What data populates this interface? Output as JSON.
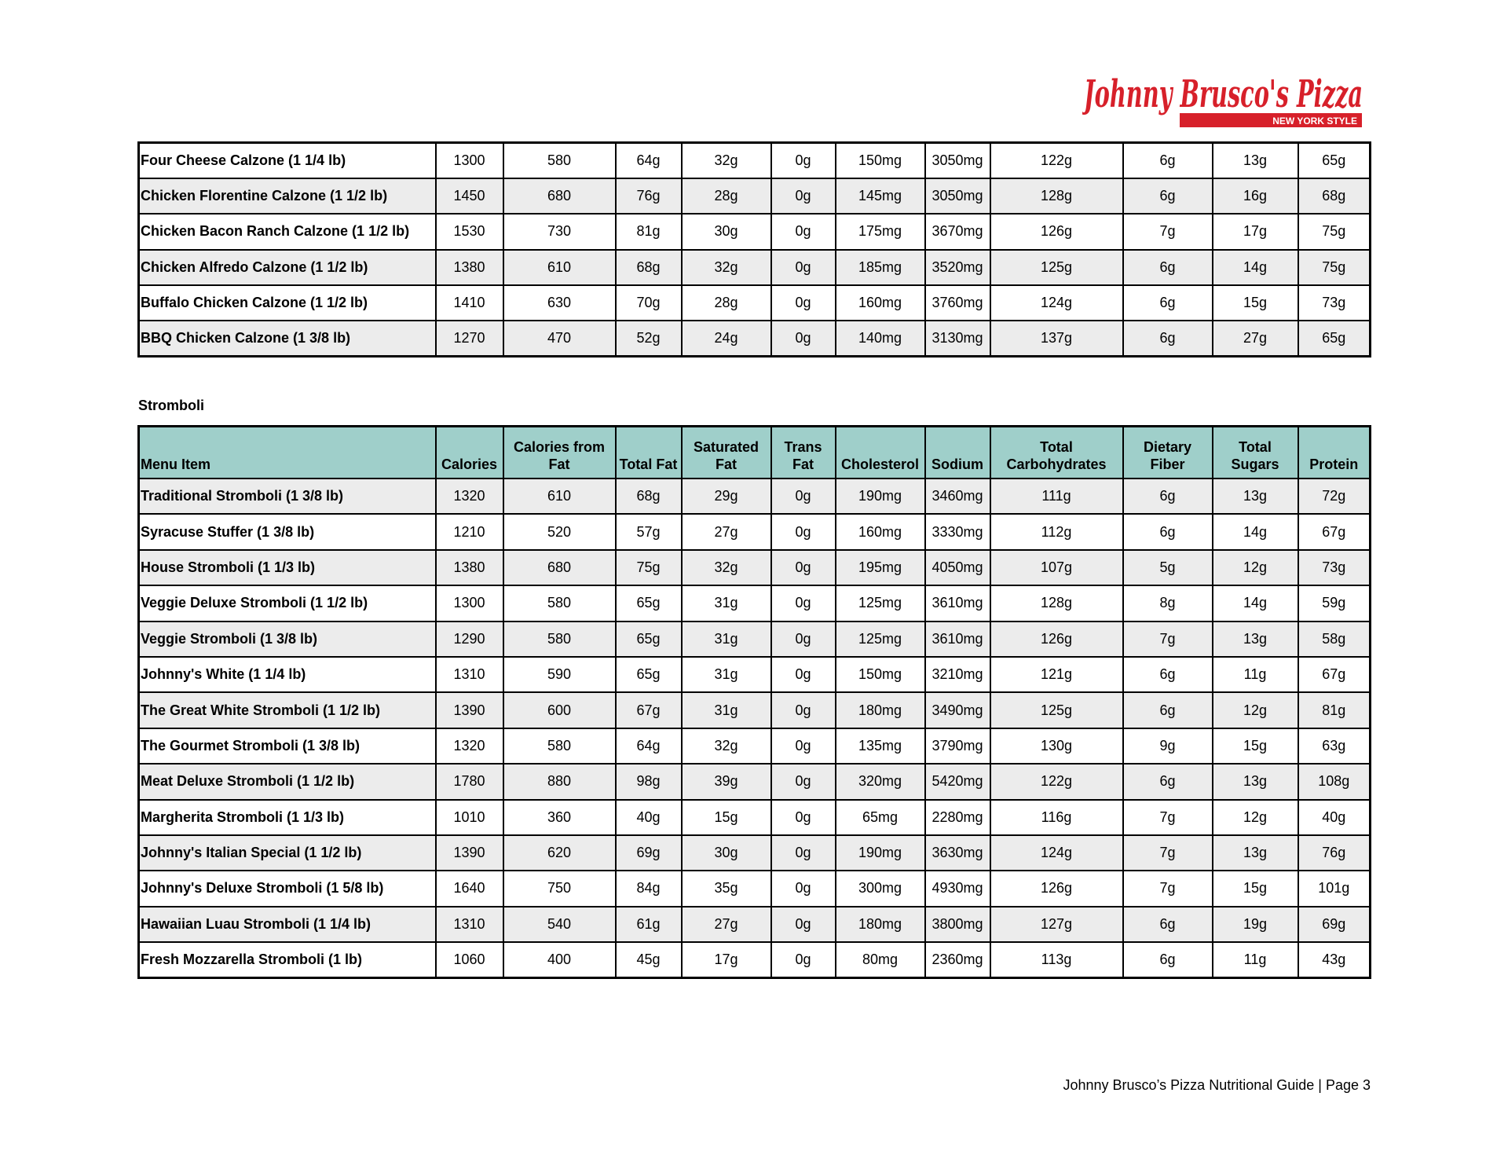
{
  "logo": {
    "name": "Johnny Brusco's Pizza",
    "tagline": "NEW YORK STYLE",
    "color": "#d7202a"
  },
  "columns": [
    "Menu Item",
    "Calories",
    "Calories from Fat",
    "Total Fat",
    "Saturated Fat",
    "Trans Fat",
    "Cholesterol",
    "Sodium",
    "Total Carbohydrates",
    "Dietary Fiber",
    "Total Sugars",
    "Protein"
  ],
  "header_color": "#9fcfca",
  "calzone_rows": [
    [
      "Four Cheese Calzone  (1 1/4 lb)",
      "1300",
      "580",
      "64g",
      "32g",
      "0g",
      "150mg",
      "3050mg",
      "122g",
      "6g",
      "13g",
      "65g"
    ],
    [
      "Chicken Florentine Calzone  (1 1/2 lb)",
      "1450",
      "680",
      "76g",
      "28g",
      "0g",
      "145mg",
      "3050mg",
      "128g",
      "6g",
      "16g",
      "68g"
    ],
    [
      "Chicken Bacon Ranch Calzone  (1 1/2 lb)",
      "1530",
      "730",
      "81g",
      "30g",
      "0g",
      "175mg",
      "3670mg",
      "126g",
      "7g",
      "17g",
      "75g"
    ],
    [
      "Chicken Alfredo Calzone  (1 1/2 lb)",
      "1380",
      "610",
      "68g",
      "32g",
      "0g",
      "185mg",
      "3520mg",
      "125g",
      "6g",
      "14g",
      "75g"
    ],
    [
      "Buffalo Chicken Calzone  (1 1/2 lb)",
      "1410",
      "630",
      "70g",
      "28g",
      "0g",
      "160mg",
      "3760mg",
      "124g",
      "6g",
      "15g",
      "73g"
    ],
    [
      "BBQ Chicken Calzone  (1 3/8 lb)",
      "1270",
      "470",
      "52g",
      "24g",
      "0g",
      "140mg",
      "3130mg",
      "137g",
      "6g",
      "27g",
      "65g"
    ]
  ],
  "stromboli_title": "Stromboli",
  "stromboli_rows": [
    [
      "Traditional Stromboli  (1 3/8 lb)",
      "1320",
      "610",
      "68g",
      "29g",
      "0g",
      "190mg",
      "3460mg",
      "111g",
      "6g",
      "13g",
      "72g"
    ],
    [
      "Syracuse Stuffer  (1 3/8 lb)",
      "1210",
      "520",
      "57g",
      "27g",
      "0g",
      "160mg",
      "3330mg",
      "112g",
      "6g",
      "14g",
      "67g"
    ],
    [
      "House Stromboli  (1 1/3 lb)",
      "1380",
      "680",
      "75g",
      "32g",
      "0g",
      "195mg",
      "4050mg",
      "107g",
      "5g",
      "12g",
      "73g"
    ],
    [
      "Veggie Deluxe Stromboli  (1 1/2 lb)",
      "1300",
      "580",
      "65g",
      "31g",
      "0g",
      "125mg",
      "3610mg",
      "128g",
      "8g",
      "14g",
      "59g"
    ],
    [
      "Veggie Stromboli  (1 3/8 lb)",
      "1290",
      "580",
      "65g",
      "31g",
      "0g",
      "125mg",
      "3610mg",
      "126g",
      "7g",
      "13g",
      "58g"
    ],
    [
      "Johnny's White  (1 1/4 lb)",
      "1310",
      "590",
      "65g",
      "31g",
      "0g",
      "150mg",
      "3210mg",
      "121g",
      "6g",
      "11g",
      "67g"
    ],
    [
      "The Great White Stromboli  (1 1/2 lb)",
      "1390",
      "600",
      "67g",
      "31g",
      "0g",
      "180mg",
      "3490mg",
      "125g",
      "6g",
      "12g",
      "81g"
    ],
    [
      "The Gourmet Stromboli  (1 3/8 lb)",
      "1320",
      "580",
      "64g",
      "32g",
      "0g",
      "135mg",
      "3790mg",
      "130g",
      "9g",
      "15g",
      "63g"
    ],
    [
      "Meat Deluxe Stromboli (1 1/2 lb)",
      "1780",
      "880",
      "98g",
      "39g",
      "0g",
      "320mg",
      "5420mg",
      "122g",
      "6g",
      "13g",
      "108g"
    ],
    [
      "Margherita Stromboli  (1 1/3 lb)",
      "1010",
      "360",
      "40g",
      "15g",
      "0g",
      "65mg",
      "2280mg",
      "116g",
      "7g",
      "12g",
      "40g"
    ],
    [
      "Johnny's Italian Special  (1 1/2 lb)",
      "1390",
      "620",
      "69g",
      "30g",
      "0g",
      "190mg",
      "3630mg",
      "124g",
      "7g",
      "13g",
      "76g"
    ],
    [
      "Johnny's Deluxe Stromboli (1 5/8 lb)",
      "1640",
      "750",
      "84g",
      "35g",
      "0g",
      "300mg",
      "4930mg",
      "126g",
      "7g",
      "15g",
      "101g"
    ],
    [
      "Hawaiian Luau Stromboli (1 1/4 lb)",
      "1310",
      "540",
      "61g",
      "27g",
      "0g",
      "180mg",
      "3800mg",
      "127g",
      "6g",
      "19g",
      "69g"
    ],
    [
      "Fresh Mozzarella Stromboli  (1 lb)",
      "1060",
      "400",
      "45g",
      "17g",
      "0g",
      "80mg",
      "2360mg",
      "113g",
      "6g",
      "11g",
      "43g"
    ]
  ],
  "footer": "Johnny Brusco’s Pizza Nutritional Guide | Page 3"
}
